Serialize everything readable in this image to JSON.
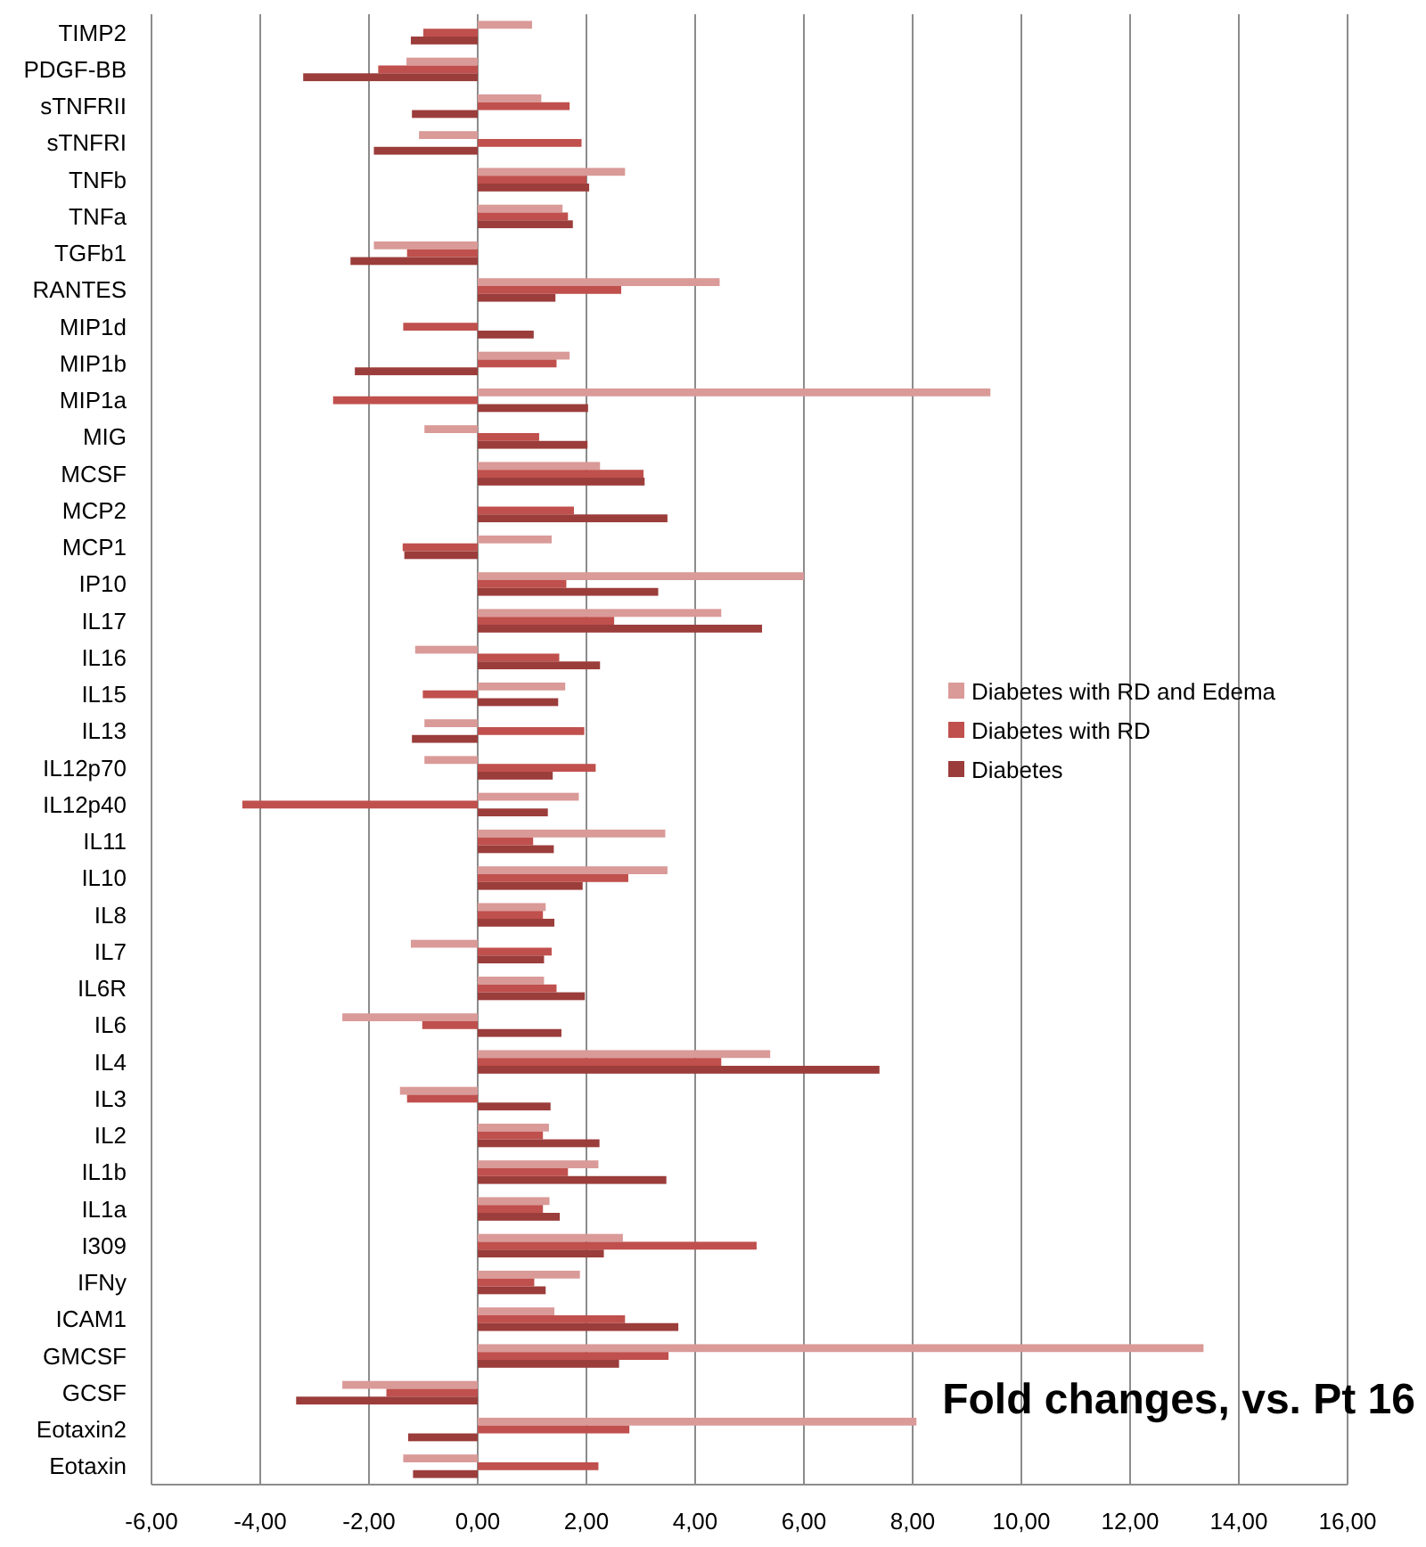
{
  "chart_data": {
    "type": "bar",
    "orientation": "horizontal",
    "annotations": [
      "Fold changes, vs. Pt 16"
    ],
    "categories": [
      "TIMP2",
      "PDGF-BB",
      "sTNFRII",
      "sTNFRI",
      "TNFb",
      "TNFa",
      "TGFb1",
      "RANTES",
      "MIP1d",
      "MIP1b",
      "MIP1a",
      "MIG",
      "MCSF",
      "MCP2",
      "MCP1",
      "IP10",
      "IL17",
      "IL16",
      "IL15",
      "IL13",
      "IL12p70",
      "IL12p40",
      "IL11",
      "IL10",
      "IL8",
      "IL7",
      "IL6R",
      "IL6",
      "IL4",
      "IL3",
      "IL2",
      "IL1b",
      "IL1a",
      "I309",
      "IFNy",
      "ICAM1",
      "GMCSF",
      "GCSF",
      "Eotaxin2",
      "Eotaxin"
    ],
    "series": [
      {
        "name": "Diabetes with RD and Edema",
        "color": "#d99a98",
        "values": [
          1.0,
          -1.31,
          1.17,
          -1.08,
          2.71,
          1.56,
          -1.91,
          4.45,
          null,
          1.69,
          9.43,
          -0.98,
          2.25,
          null,
          1.36,
          6.0,
          4.48,
          -1.15,
          1.61,
          -0.98,
          -0.98,
          1.86,
          3.45,
          3.49,
          1.25,
          -1.23,
          1.22,
          -2.49,
          5.38,
          -1.43,
          1.31,
          2.22,
          1.32,
          2.67,
          1.88,
          1.41,
          13.35,
          -2.49,
          8.07,
          -1.37
        ]
      },
      {
        "name": "Diabetes with RD",
        "color": "#c0504d",
        "values": [
          -1.0,
          -1.83,
          1.69,
          1.91,
          2.0,
          1.66,
          -1.3,
          2.64,
          -1.37,
          1.45,
          -2.66,
          1.13,
          3.05,
          1.77,
          -1.38,
          1.63,
          2.51,
          1.5,
          -1.01,
          1.96,
          2.17,
          -4.33,
          1.02,
          2.77,
          1.2,
          1.36,
          1.45,
          -1.02,
          4.48,
          -1.3,
          1.2,
          1.66,
          1.2,
          5.13,
          1.04,
          2.71,
          3.51,
          -1.68,
          2.79,
          2.22
        ]
      },
      {
        "name": "Diabetes",
        "color": "#9b3d3b",
        "values": [
          -1.23,
          -3.21,
          -1.21,
          -1.91,
          2.05,
          1.75,
          -2.34,
          1.43,
          1.03,
          -2.26,
          2.03,
          2.02,
          3.07,
          3.49,
          -1.35,
          3.32,
          5.23,
          2.25,
          1.48,
          -1.21,
          1.38,
          1.29,
          1.4,
          1.93,
          1.41,
          1.22,
          1.97,
          1.54,
          7.39,
          1.34,
          2.24,
          3.47,
          1.51,
          2.32,
          1.25,
          3.69,
          2.6,
          -3.34,
          -1.28,
          -1.19
        ]
      }
    ],
    "xlim": [
      -6,
      16
    ],
    "xticks": [
      {
        "value": -6,
        "label": "-6,00"
      },
      {
        "value": -4,
        "label": "-4,00"
      },
      {
        "value": -2,
        "label": "-2,00"
      },
      {
        "value": 0,
        "label": "0,00"
      },
      {
        "value": 2,
        "label": "2,00"
      },
      {
        "value": 4,
        "label": "4,00"
      },
      {
        "value": 6,
        "label": "6,00"
      },
      {
        "value": 8,
        "label": "8,00"
      },
      {
        "value": 10,
        "label": "10,00"
      },
      {
        "value": 12,
        "label": "12,00"
      },
      {
        "value": 14,
        "label": "14,00"
      },
      {
        "value": 16,
        "label": "16,00"
      }
    ],
    "grid": "x",
    "legend": "right"
  }
}
